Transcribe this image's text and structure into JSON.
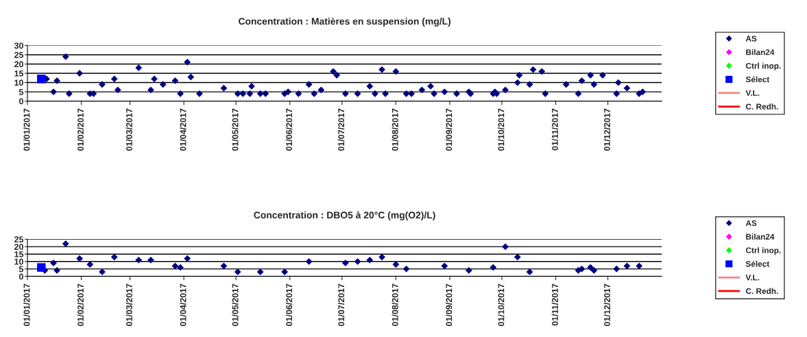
{
  "chart_data": [
    {
      "type": "scatter",
      "title": "Concentration : Matières en suspension (mg/L)",
      "xlim": [
        "2017-01-01",
        "2018-01-01"
      ],
      "ylim": [
        0,
        30
      ],
      "yticks": [
        0,
        5,
        10,
        15,
        20,
        25,
        30
      ],
      "xticks": [
        {
          "value": "2017-01-01",
          "label": "01/01/2017"
        },
        {
          "value": "2017-02-01",
          "label": "01/02/2017"
        },
        {
          "value": "2017-03-01",
          "label": "01/03/2017"
        },
        {
          "value": "2017-04-01",
          "label": "01/04/2017"
        },
        {
          "value": "2017-05-01",
          "label": "01/05/2017"
        },
        {
          "value": "2017-06-01",
          "label": "01/06/2017"
        },
        {
          "value": "2017-07-01",
          "label": "01/07/2017"
        },
        {
          "value": "2017-08-01",
          "label": "01/08/2017"
        },
        {
          "value": "2017-09-01",
          "label": "01/09/2017"
        },
        {
          "value": "2017-10-01",
          "label": "01/10/2017"
        },
        {
          "value": "2017-11-01",
          "label": "01/11/2017"
        },
        {
          "value": "2017-12-01",
          "label": "01/12/2017"
        }
      ],
      "grid": "y",
      "legend": "right",
      "series": [
        {
          "name": "AS",
          "marker": "diamond",
          "color": "#000080",
          "x": [
            "2017-01-12",
            "2017-01-16",
            "2017-01-18",
            "2017-01-23",
            "2017-01-25",
            "2017-01-31",
            "2017-02-06",
            "2017-02-08",
            "2017-02-13",
            "2017-02-20",
            "2017-02-22",
            "2017-03-06",
            "2017-03-13",
            "2017-03-15",
            "2017-03-20",
            "2017-03-27",
            "2017-03-30",
            "2017-04-03",
            "2017-04-05",
            "2017-04-10",
            "2017-04-24",
            "2017-05-02",
            "2017-05-05",
            "2017-05-09",
            "2017-05-10",
            "2017-05-15",
            "2017-05-18",
            "2017-05-29",
            "2017-05-31",
            "2017-06-06",
            "2017-06-12",
            "2017-06-15",
            "2017-06-19",
            "2017-06-26",
            "2017-06-28",
            "2017-07-03",
            "2017-07-10",
            "2017-07-17",
            "2017-07-20",
            "2017-07-24",
            "2017-07-26",
            "2017-08-01",
            "2017-08-07",
            "2017-08-10",
            "2017-08-16",
            "2017-08-21",
            "2017-08-23",
            "2017-08-29",
            "2017-09-05",
            "2017-09-12",
            "2017-09-13",
            "2017-09-26",
            "2017-09-27",
            "2017-09-28",
            "2017-10-03",
            "2017-10-10",
            "2017-10-11",
            "2017-10-17",
            "2017-10-19",
            "2017-10-24",
            "2017-10-26",
            "2017-11-07",
            "2017-11-14",
            "2017-11-16",
            "2017-11-21",
            "2017-11-23",
            "2017-11-28",
            "2017-12-06",
            "2017-12-07",
            "2017-12-12",
            "2017-12-19",
            "2017-12-21"
          ],
          "values": [
            12,
            5,
            11,
            24,
            4,
            15,
            4,
            4,
            9,
            12,
            6,
            18,
            6,
            12,
            9,
            11,
            4,
            21,
            13,
            4,
            7,
            4,
            4,
            4,
            8,
            4,
            4,
            4,
            5,
            4,
            9,
            4,
            6,
            16,
            14,
            4,
            4,
            8,
            4,
            17,
            4,
            16,
            4,
            4,
            6,
            8,
            4,
            5,
            4,
            5,
            4,
            4,
            5,
            4,
            6,
            10,
            14,
            9,
            17,
            16,
            4,
            9,
            4,
            11,
            14,
            9,
            14,
            4,
            10,
            7,
            4,
            5
          ]
        },
        {
          "name": "Bilan24",
          "marker": "diamond",
          "color": "#ff00ff"
        },
        {
          "name": "Ctrl inop.",
          "marker": "diamond",
          "color": "#00ff00"
        },
        {
          "name": "Sélect",
          "marker": "square",
          "color": "#0000ff",
          "x": [
            "2017-01-09"
          ],
          "values": [
            12
          ]
        },
        {
          "name": "V.L.",
          "type": "line",
          "marker": "none",
          "color": "#ff8080"
        },
        {
          "name": "C. Redh.",
          "type": "line",
          "marker": "none",
          "color": "#ff0000"
        }
      ]
    },
    {
      "type": "scatter",
      "title": "Concentration : DBO5 à 20°C (mg(O2)/L)",
      "xlim": [
        "2017-01-01",
        "2018-01-01"
      ],
      "ylim": [
        0,
        25
      ],
      "yticks": [
        0,
        5,
        10,
        15,
        20,
        25
      ],
      "xticks": [
        {
          "value": "2017-01-01",
          "label": "01/01/2017"
        },
        {
          "value": "2017-02-01",
          "label": "01/02/2017"
        },
        {
          "value": "2017-03-01",
          "label": "01/03/2017"
        },
        {
          "value": "2017-04-01",
          "label": "01/04/2017"
        },
        {
          "value": "2017-05-01",
          "label": "01/05/2017"
        },
        {
          "value": "2017-06-01",
          "label": "01/06/2017"
        },
        {
          "value": "2017-07-01",
          "label": "01/07/2017"
        },
        {
          "value": "2017-08-01",
          "label": "01/08/2017"
        },
        {
          "value": "2017-09-01",
          "label": "01/09/2017"
        },
        {
          "value": "2017-10-01",
          "label": "01/10/2017"
        },
        {
          "value": "2017-11-01",
          "label": "01/11/2017"
        },
        {
          "value": "2017-12-01",
          "label": "01/12/2017"
        }
      ],
      "grid": "y",
      "legend": "right",
      "series": [
        {
          "name": "AS",
          "marker": "diamond",
          "color": "#000080",
          "x": [
            "2017-01-11",
            "2017-01-16",
            "2017-01-18",
            "2017-01-23",
            "2017-01-31",
            "2017-02-06",
            "2017-02-13",
            "2017-02-20",
            "2017-03-06",
            "2017-03-13",
            "2017-03-27",
            "2017-03-30",
            "2017-04-03",
            "2017-04-24",
            "2017-05-02",
            "2017-05-15",
            "2017-05-29",
            "2017-06-12",
            "2017-07-03",
            "2017-07-10",
            "2017-07-17",
            "2017-07-24",
            "2017-08-01",
            "2017-08-07",
            "2017-08-29",
            "2017-09-12",
            "2017-09-26",
            "2017-10-03",
            "2017-10-10",
            "2017-10-17",
            "2017-11-14",
            "2017-11-16",
            "2017-11-21",
            "2017-11-23",
            "2017-12-06",
            "2017-12-12",
            "2017-12-19"
          ],
          "values": [
            4,
            9,
            4,
            22,
            12,
            8,
            3,
            13,
            11,
            11,
            7,
            6,
            12,
            7,
            3,
            3,
            3,
            10,
            9,
            10,
            11,
            13,
            8,
            5,
            7,
            4,
            6,
            20,
            13,
            3,
            4,
            5,
            6,
            4,
            5,
            7,
            7
          ]
        },
        {
          "name": "Bilan24",
          "marker": "diamond",
          "color": "#ff00ff"
        },
        {
          "name": "Ctrl inop.",
          "marker": "diamond",
          "color": "#00ff00"
        },
        {
          "name": "Sélect",
          "marker": "square",
          "color": "#0000ff",
          "x": [
            "2017-01-09"
          ],
          "values": [
            6
          ]
        },
        {
          "name": "V.L.",
          "type": "line",
          "marker": "none",
          "color": "#ff8080"
        },
        {
          "name": "C. Redh.",
          "type": "line",
          "marker": "none",
          "color": "#ff0000"
        }
      ]
    }
  ]
}
